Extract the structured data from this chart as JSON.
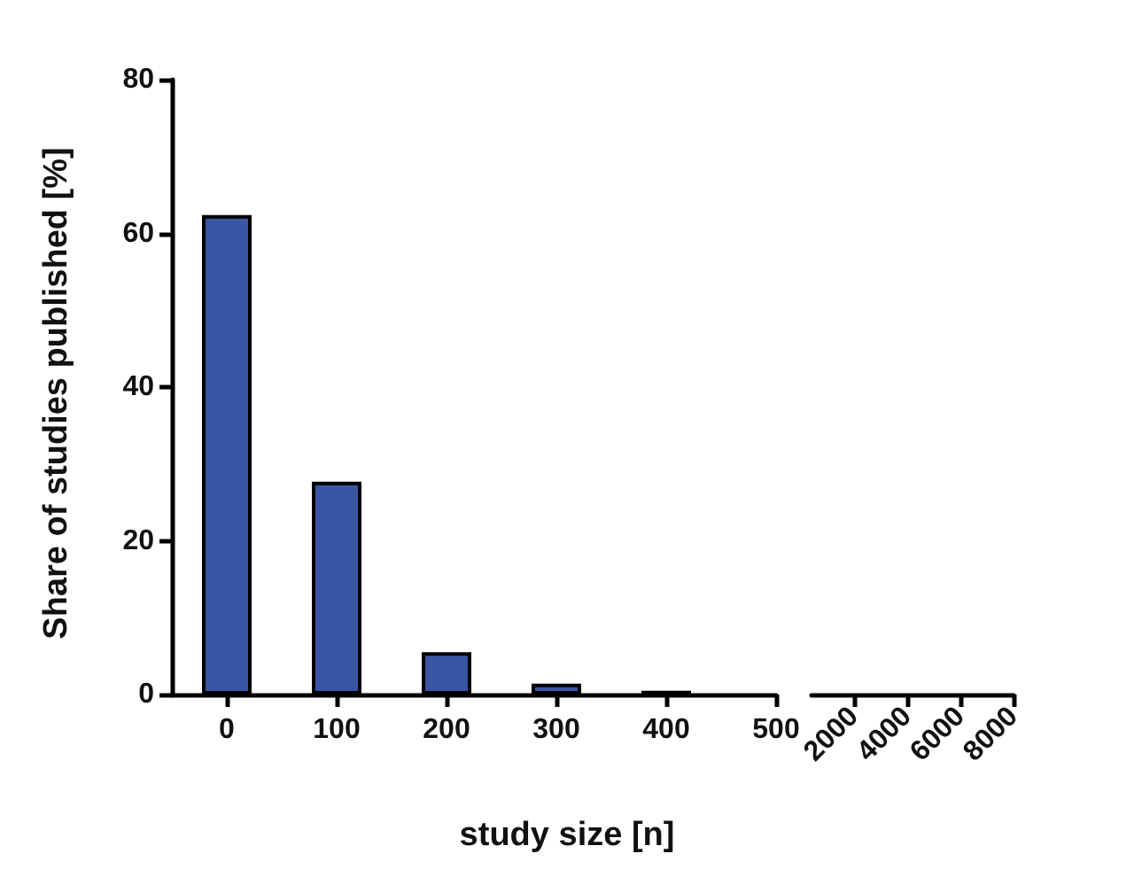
{
  "chart_data": {
    "type": "bar",
    "xlabel": "study size [n]",
    "ylabel": "Share of studies published [%]",
    "x": [
      0,
      100,
      200,
      300,
      400
    ],
    "values": [
      62.4,
      27.7,
      5.5,
      1.4,
      0.5
    ],
    "color": "#3a55a4",
    "xlim": [
      -50,
      500
    ],
    "xticks": [
      0,
      100,
      200,
      300,
      400,
      500
    ],
    "x2lim": [
      400,
      8000
    ],
    "x2ticks": [
      2000,
      4000,
      6000,
      8000
    ],
    "ylim": [
      0,
      80
    ],
    "yticks": [
      0,
      20,
      40,
      60,
      80
    ],
    "grid": false
  }
}
